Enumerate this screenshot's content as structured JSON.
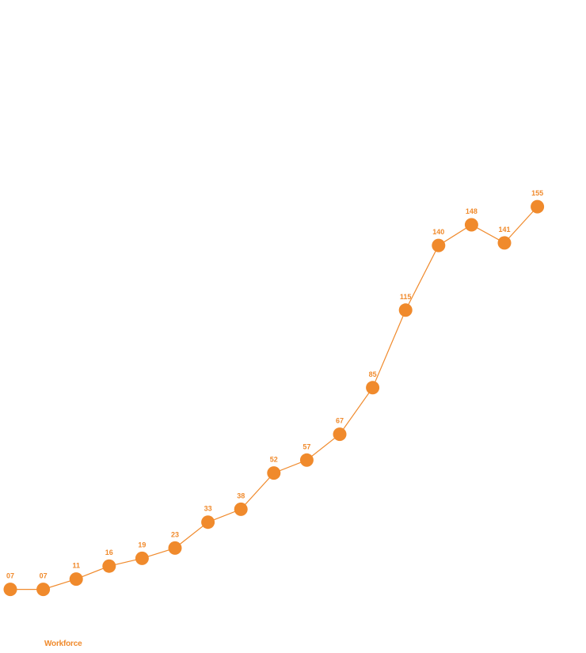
{
  "chart_data": {
    "type": "line",
    "series": [
      {
        "name": "Workforce",
        "labels": [
          "07",
          "07",
          "11",
          "16",
          "19",
          "23",
          "33",
          "38",
          "52",
          "57",
          "67",
          "85",
          "115",
          "140",
          "148",
          "141",
          "155"
        ],
        "values": [
          7,
          7,
          11,
          16,
          19,
          23,
          33,
          38,
          52,
          57,
          67,
          85,
          115,
          140,
          148,
          141,
          155
        ]
      }
    ],
    "ylim": [
      0,
      160
    ],
    "grid": false,
    "legend": "bottom-left"
  },
  "colors": {
    "series": "#f08a2c"
  }
}
